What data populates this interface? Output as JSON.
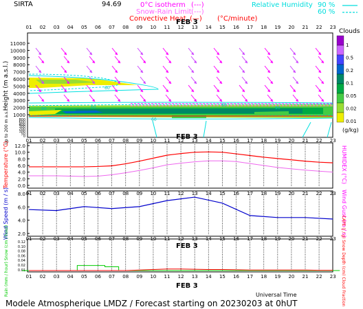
{
  "header": {
    "site": "SIRTA",
    "coords": "94.69",
    "iso_label": "0°C isotherm",
    "iso_sym": "(---)",
    "snow_label": "Snow-Rain Limit",
    "snow_sym": "(---)",
    "conv_label": "Convective Heat.",
    "conv_sym": "(—)",
    "conv_unit": "(°C/minute)",
    "rh_label": "Relative Humidity",
    "rh_90": "90 %",
    "rh_60": "60 %"
  },
  "colors": {
    "magenta": "#ff00ff",
    "red": "#ff0000",
    "blue": "#0000cc",
    "cyan": "#00e0e0",
    "green": "#00cc00",
    "pink": "#ee66ee"
  },
  "hours": [
    "01",
    "02",
    "03",
    "04",
    "05",
    "06",
    "07",
    "08",
    "09",
    "10",
    "11",
    "12",
    "13",
    "14",
    "15",
    "16",
    "17",
    "18",
    "19",
    "20",
    "21",
    "22",
    "23"
  ],
  "date_label": "FEB  3",
  "panel_clouds": {
    "ylabel": "Height  (m a.s.l.)",
    "ylabel_low": "Up to 200 m a.s.l.",
    "yticks_upper": [
      "11000",
      "10000",
      "9000",
      "8000",
      "7000",
      "6000",
      "5000",
      "4000",
      "3000",
      "2000",
      "1000"
    ],
    "yticks_lower": [
      "800",
      "600",
      "400",
      "300",
      "200",
      "100",
      "50",
      "0"
    ],
    "colorbar_title": "Clouds",
    "colorbar_ticks": [
      "1",
      "0.5",
      "0.2",
      "0.1",
      "0.05",
      "0.02",
      "0.01"
    ],
    "colorbar_unit": "(g/kg)",
    "colorbar_colors": [
      "#9900cc",
      "#cc66ff",
      "#4444ff",
      "#0066cc",
      "#008866",
      "#00aa44",
      "#44cc44",
      "#99dd33",
      "#eeee00"
    ],
    "contour_labels": [
      "60",
      "90",
      "60",
      "60",
      "90",
      "60"
    ]
  },
  "chart_data": [
    {
      "type": "line",
      "title": "",
      "ylabel": "Temperature (°C)",
      "ylabel_right": "HUMIDEX (°C)",
      "yticks": [
        "12.0",
        "10.0",
        "8.0",
        "6.0",
        "4.0",
        "2.0",
        "0.0"
      ],
      "ylim": [
        0,
        12
      ],
      "x": [
        1,
        2,
        3,
        4,
        5,
        6,
        7,
        8,
        9,
        10,
        11,
        12,
        13,
        14,
        15,
        16,
        17,
        18,
        19,
        20,
        21,
        22,
        23
      ],
      "series": [
        {
          "values": [
            5.6,
            5.6,
            5.6,
            5.6,
            5.6,
            5.7,
            5.9,
            6.5,
            7.3,
            8.2,
            9.1,
            9.6,
            10.0,
            10.1,
            10.0,
            9.5,
            9.0,
            8.5,
            8.1,
            7.7,
            7.3,
            7.0,
            6.8
          ]
        },
        {
          "values": [
            2.9,
            2.9,
            2.9,
            2.8,
            2.7,
            2.8,
            3.2,
            3.8,
            4.5,
            5.3,
            6.2,
            6.7,
            7.1,
            7.4,
            7.4,
            7.2,
            6.6,
            6.0,
            5.4,
            5.0,
            4.6,
            4.3,
            4.0
          ]
        }
      ]
    },
    {
      "type": "line",
      "ylabel": "Wind Speed (m / s)",
      "ylabel_right": "Wind Gust (m / s)",
      "yticks": [
        "8.0",
        "6.0",
        "4.0",
        "2.0"
      ],
      "ylim": [
        0,
        8
      ],
      "x": [
        1,
        3,
        5,
        7,
        9,
        11,
        13,
        15,
        17,
        19,
        21,
        23
      ],
      "series": [
        {
          "values": [
            4.8,
            4.6,
            5.4,
            5.0,
            5.4,
            6.6,
            7.3,
            6.1,
            3.6,
            3.2,
            3.2,
            2.9
          ]
        }
      ]
    },
    {
      "type": "line",
      "ylabel": "Rain (mm / hour) Snow (cm / hour)",
      "ylabel_right": "CAPE (J / g) Snow Depth (cm) Cloud Fraction",
      "yticks": [
        "0.12",
        "0.10",
        "0.08",
        "0.06",
        "0.04",
        "0.02",
        "0.01"
      ],
      "ylim": [
        0,
        0.12
      ],
      "x": [
        1,
        2,
        3,
        4,
        5,
        6,
        7,
        8,
        9,
        10,
        11,
        12,
        13,
        14,
        15,
        16,
        17,
        18,
        19,
        20,
        21,
        22,
        23
      ],
      "series": [
        {
          "values": [
            0,
            0,
            0,
            0,
            0.02,
            0.02,
            0.015,
            0,
            0,
            0,
            0,
            0,
            0,
            0,
            0,
            0,
            0,
            0,
            0,
            0,
            0,
            0,
            0
          ]
        },
        {
          "values": [
            0,
            0,
            0,
            0,
            0,
            0,
            0,
            0,
            0.002,
            0.004,
            0.006,
            0.006,
            0.005,
            0.004,
            0.004,
            0.003,
            0.002,
            0.002,
            0.002,
            0.002,
            0.002,
            0.001,
            0.001
          ]
        }
      ]
    }
  ],
  "footer": {
    "utc_label": "Universal Time",
    "caption": "Modele Atmospherique LMDZ / Forecast starting on 20230203 at 0hUT"
  }
}
